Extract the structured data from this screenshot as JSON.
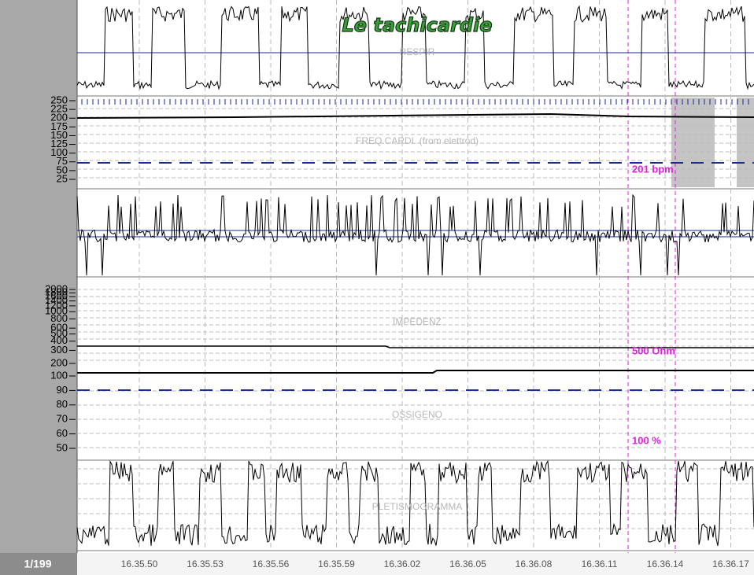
{
  "title": "Le tachicardie",
  "page_indicator": "1/199",
  "time_labels": [
    "16.35.50",
    "16.35.53",
    "16.35.56",
    "16.35.59",
    "16.36.02",
    "16.36.05",
    "16.36.08",
    "16.36.11",
    "16.36.14",
    "16.36.17"
  ],
  "panels": {
    "respir": {
      "label": "RESPIR"
    },
    "heart_rate": {
      "label": "FREQ.CARDI. (from elettrod)",
      "ticks": [
        250,
        225,
        200,
        175,
        150,
        125,
        100,
        75,
        50,
        25
      ],
      "ylim": [
        25,
        250
      ],
      "marker": "201 bpm"
    },
    "impedance": {
      "label": "IMPEDENZ",
      "ticks": [
        2000,
        1800,
        1600,
        1400,
        1200,
        1000,
        800,
        600,
        500,
        400,
        300,
        200
      ],
      "ylim": [
        200,
        2000
      ],
      "log_scale": true,
      "marker": "500 Ohm"
    },
    "oxygen": {
      "label": "OSSIGENO",
      "ticks": [
        100,
        90,
        80,
        70,
        60,
        50
      ],
      "ylim": [
        50,
        100
      ],
      "marker": "100 %"
    },
    "plethysmogram": {
      "label": "PLETISMOGRAMMA"
    }
  }
}
